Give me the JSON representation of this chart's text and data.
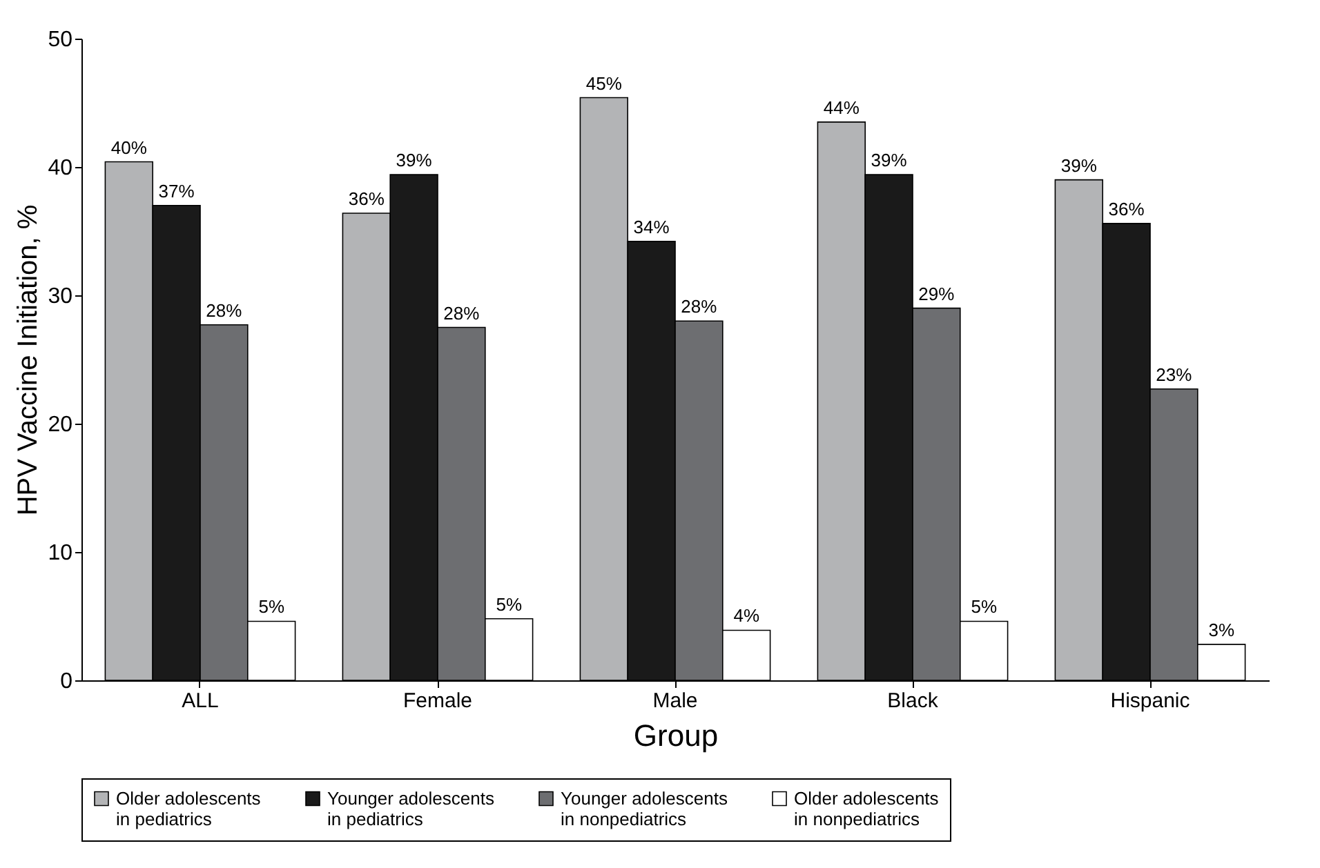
{
  "chart_data": {
    "type": "bar",
    "xlabel": "Group",
    "ylabel": "HPV Vaccine Initiation, %",
    "categories": [
      "ALL",
      "Female",
      "Male",
      "Black",
      "Hispanic"
    ],
    "series": [
      {
        "name": "Older adolescents in pediatrics",
        "color": "#b3b4b6",
        "values": [
          40.4,
          36.4,
          45.4,
          43.5,
          39.0
        ],
        "value_labels": [
          "40%",
          "36%",
          "45%",
          "44%",
          "39%"
        ]
      },
      {
        "name": "Younger adolescents in pediatrics",
        "color": "#1a1a1a",
        "values": [
          37.0,
          39.4,
          34.2,
          39.4,
          35.6
        ],
        "value_labels": [
          "37%",
          "39%",
          "34%",
          "39%",
          "36%"
        ]
      },
      {
        "name": "Younger adolescents in nonpediatrics",
        "color": "#6d6e71",
        "values": [
          27.7,
          27.5,
          28.0,
          29.0,
          22.7
        ],
        "value_labels": [
          "28%",
          "28%",
          "28%",
          "29%",
          "23%"
        ]
      },
      {
        "name": "Older adolescents in nonpediatrics",
        "color": "#ffffff",
        "values": [
          4.6,
          4.8,
          3.9,
          4.6,
          2.8
        ],
        "value_labels": [
          "5%",
          "5%",
          "4%",
          "5%",
          "3%"
        ]
      }
    ],
    "ylim": [
      0,
      50
    ],
    "yticks": [
      0,
      10,
      20,
      30,
      40,
      50
    ],
    "legend": "bottom"
  }
}
